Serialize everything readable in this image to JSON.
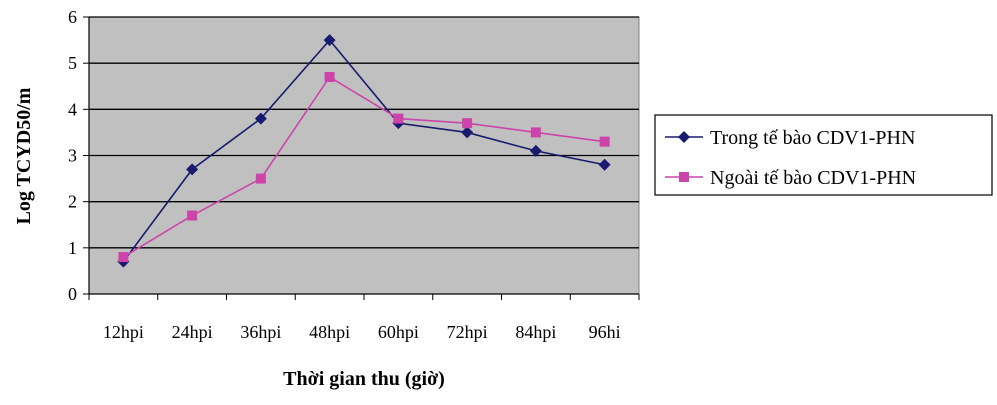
{
  "chart_data": {
    "type": "line",
    "categories": [
      "12hpi",
      "24hpi",
      "36hpi",
      "48hpi",
      "60hpi",
      "72hpi",
      "84hpi",
      "96hi"
    ],
    "series": [
      {
        "name": "Trong tế bào CDV1-PHN",
        "values": [
          0.7,
          2.7,
          3.8,
          5.5,
          3.7,
          3.5,
          3.1,
          2.8
        ],
        "color": "#1a1a6e",
        "marker": "diamond"
      },
      {
        "name": "Ngoài tế bào CDV1-PHN",
        "values": [
          0.8,
          1.7,
          2.5,
          4.7,
          3.8,
          3.7,
          3.5,
          3.3
        ],
        "color": "#cc44aa",
        "marker": "square"
      }
    ],
    "xlabel": "Thời gian thu (giờ)",
    "ylabel": "Log TCYD50/m",
    "ylim": [
      0,
      6
    ],
    "yticks": [
      0,
      1,
      2,
      3,
      4,
      5,
      6
    ],
    "grid": true,
    "plot_background": "#c0c0c0",
    "legend_position": "right"
  }
}
